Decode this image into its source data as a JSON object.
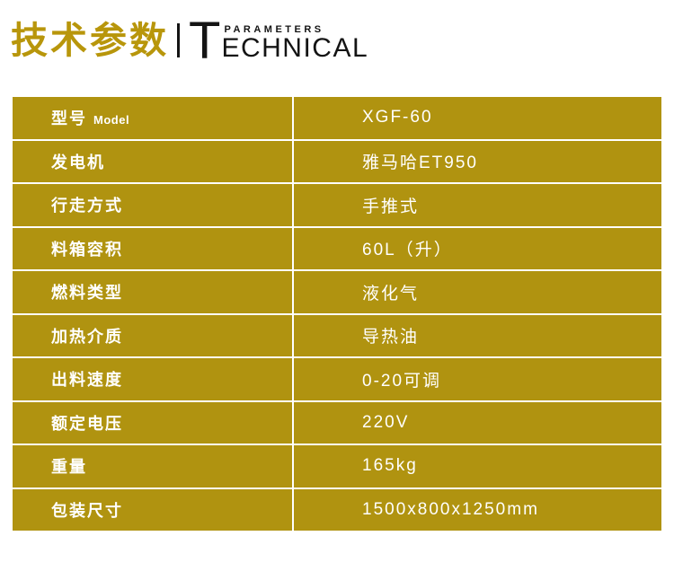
{
  "header": {
    "title_cn": "技术参数",
    "logo_initial": "T",
    "logo_top": "PARAMETERS",
    "logo_rest": "ECHNICAL"
  },
  "table": {
    "rows": [
      {
        "label": "型号",
        "label_suffix": "Model",
        "value": "XGF-60"
      },
      {
        "label": "发电机",
        "label_suffix": "",
        "value": "雅马哈ET950"
      },
      {
        "label": "行走方式",
        "label_suffix": "",
        "value": "手推式"
      },
      {
        "label": "料箱容积",
        "label_suffix": "",
        "value": "60L（升）"
      },
      {
        "label": "燃料类型",
        "label_suffix": "",
        "value": "液化气"
      },
      {
        "label": "加热介质",
        "label_suffix": "",
        "value": "导热油"
      },
      {
        "label": "出料速度",
        "label_suffix": "",
        "value": "0-20可调"
      },
      {
        "label": "额定电压",
        "label_suffix": "",
        "value": "220V"
      },
      {
        "label": "重量",
        "label_suffix": "",
        "value": "165kg"
      },
      {
        "label": "包装尺寸",
        "label_suffix": "",
        "value": "1500x800x1250mm"
      }
    ]
  },
  "colors": {
    "table_gold": "#b09310",
    "title_gold": "#b8960b",
    "logo_black": "#141414",
    "text_white": "#ffffff"
  }
}
